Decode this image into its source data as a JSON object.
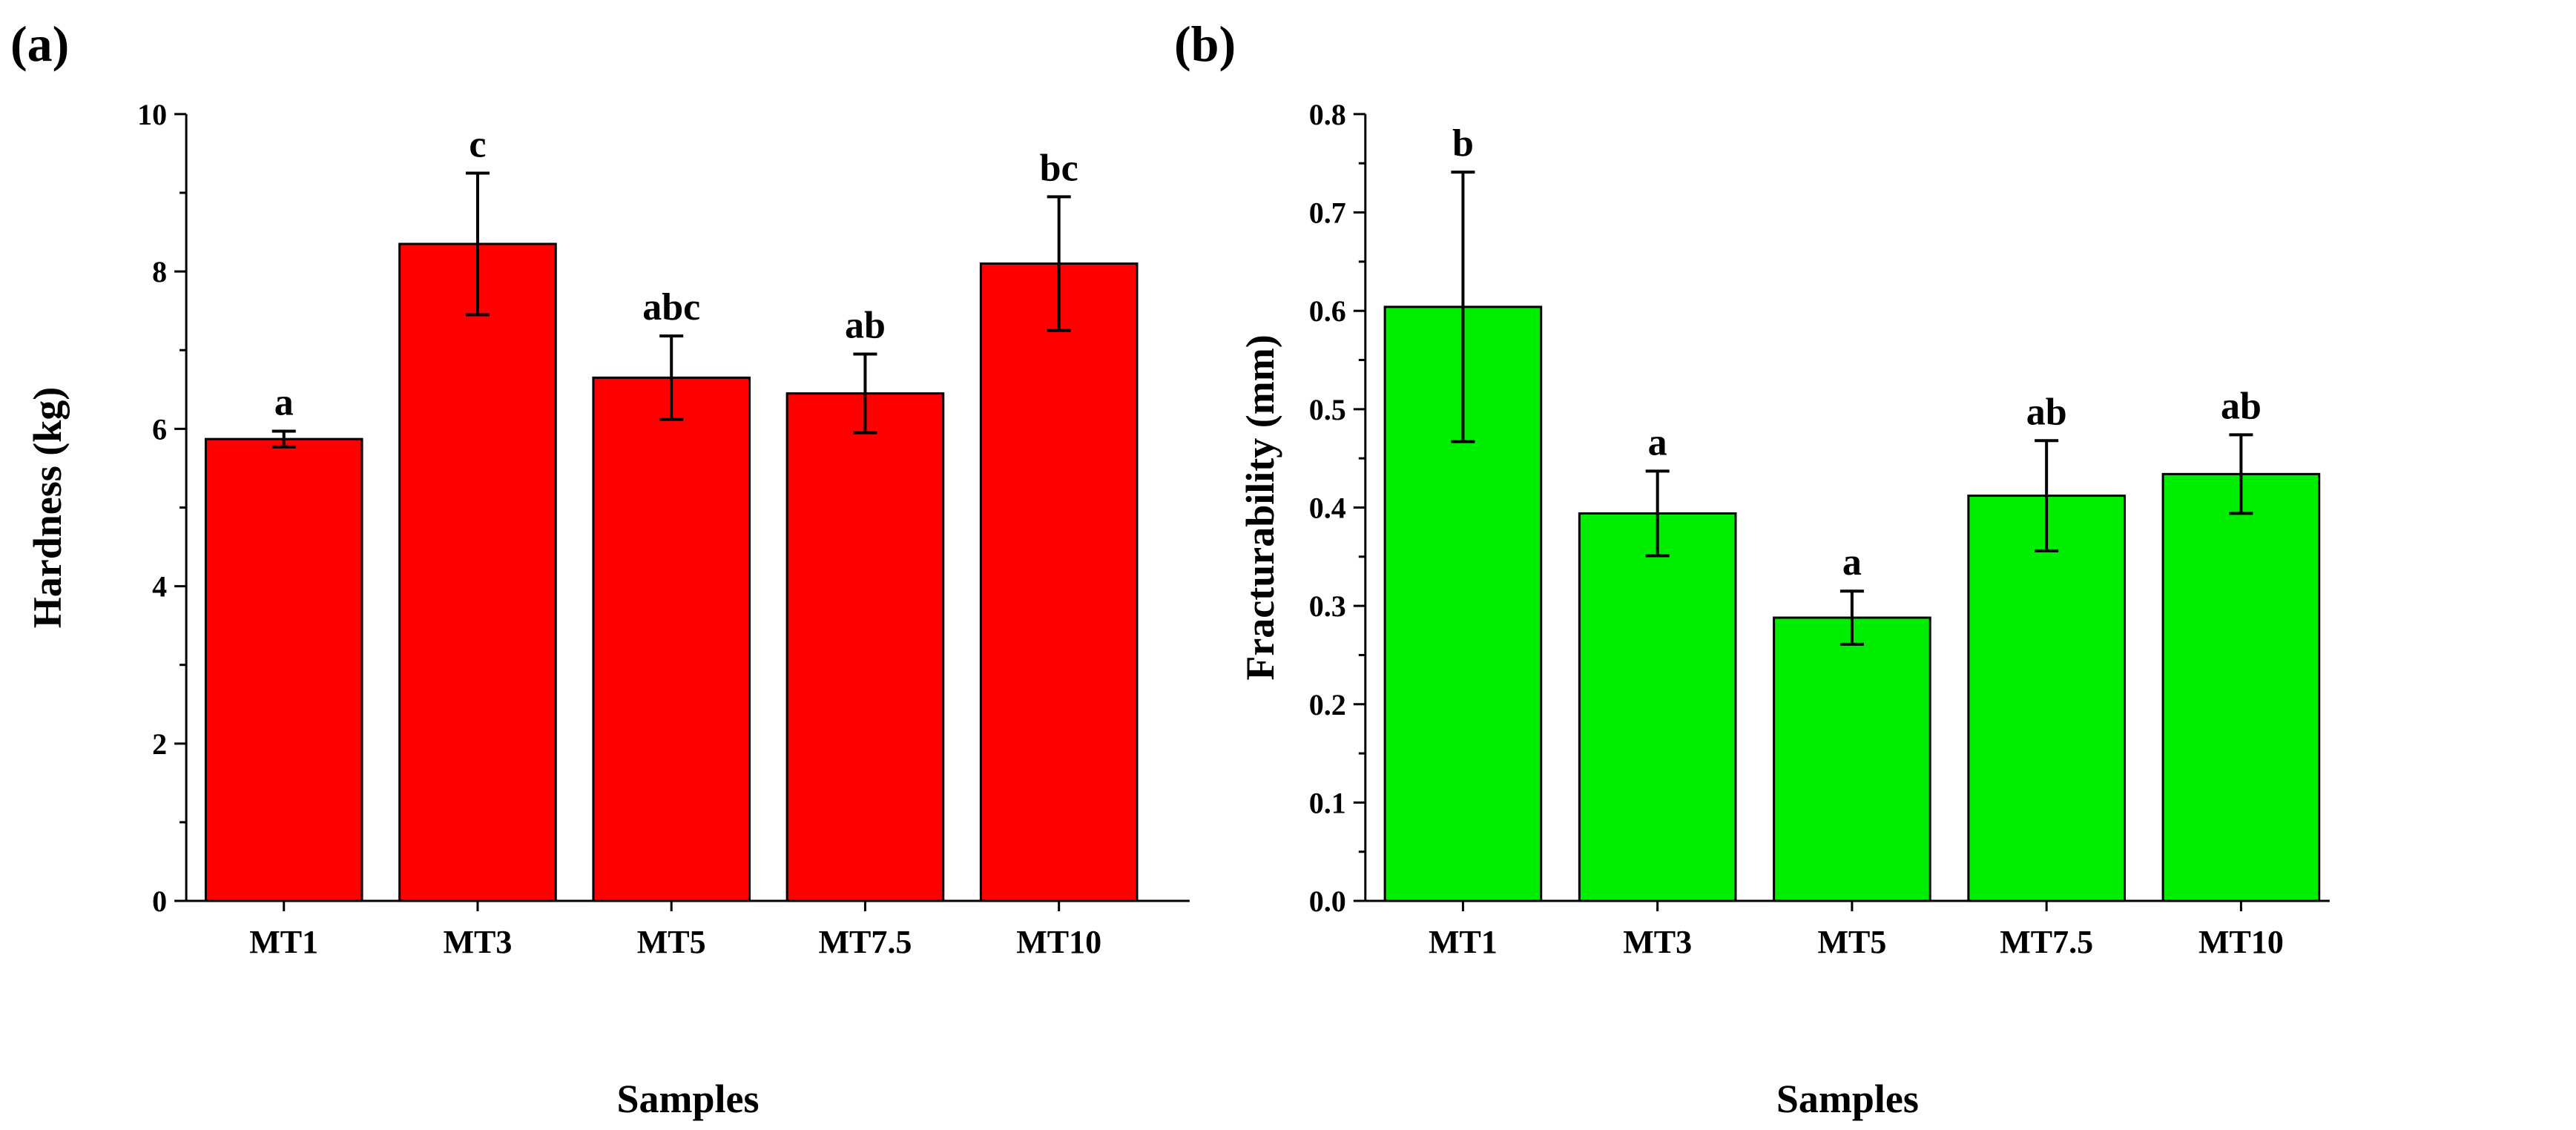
{
  "chart_data": [
    {
      "type": "bar",
      "panel_label": "(a)",
      "categories": [
        "MT1",
        "MT3",
        "MT5",
        "MT7.5",
        "MT10"
      ],
      "values": [
        5.87,
        8.35,
        6.65,
        6.45,
        8.1
      ],
      "errors": [
        0.1,
        0.9,
        0.53,
        0.5,
        0.85
      ],
      "significance": [
        "a",
        "c",
        "abc",
        "ab",
        "bc"
      ],
      "xlabel": "Samples",
      "ylabel": "Hardness (kg)",
      "ylim": [
        0,
        10
      ],
      "yticks": [
        0,
        2,
        4,
        6,
        8,
        10
      ],
      "ytick_labels": [
        "0",
        "2",
        "4",
        "6",
        "8",
        "10"
      ],
      "color": "#ff0000",
      "grid": false
    },
    {
      "type": "bar",
      "panel_label": "(b)",
      "categories": [
        "MT1",
        "MT3",
        "MT5",
        "MT7.5",
        "MT10"
      ],
      "values": [
        0.604,
        0.394,
        0.288,
        0.412,
        0.434
      ],
      "errors": [
        0.137,
        0.043,
        0.027,
        0.056,
        0.04
      ],
      "significance": [
        "b",
        "a",
        "a",
        "ab",
        "ab"
      ],
      "xlabel": "Samples",
      "ylabel": "Fracturability (mm)",
      "ylim": [
        0,
        0.8
      ],
      "yticks": [
        0,
        0.1,
        0.2,
        0.3,
        0.4,
        0.5,
        0.6,
        0.7,
        0.8
      ],
      "ytick_labels": [
        "0.0",
        "0.1",
        "0.2",
        "0.3",
        "0.4",
        "0.5",
        "0.6",
        "0.7",
        "0.8"
      ],
      "color": "#00ee00",
      "grid": false
    }
  ]
}
